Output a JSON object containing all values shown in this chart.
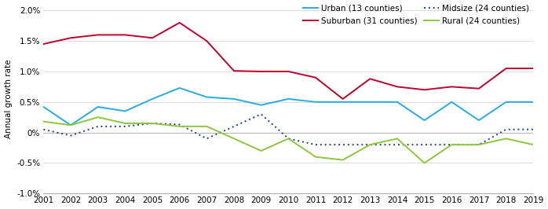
{
  "years": [
    2001,
    2002,
    2003,
    2004,
    2005,
    2006,
    2007,
    2008,
    2009,
    2010,
    2011,
    2012,
    2013,
    2014,
    2015,
    2016,
    2017,
    2018,
    2019
  ],
  "urban": [
    0.0042,
    0.0012,
    0.0042,
    0.0035,
    0.0055,
    0.0073,
    0.0058,
    0.0055,
    0.0045,
    0.0055,
    0.005,
    0.005,
    0.005,
    0.005,
    0.002,
    0.005,
    0.002,
    0.005,
    0.005
  ],
  "suburban": [
    0.0145,
    0.0155,
    0.016,
    0.016,
    0.0155,
    0.018,
    0.015,
    0.0101,
    0.01,
    0.01,
    0.009,
    0.0055,
    0.0088,
    0.0075,
    0.007,
    0.0075,
    0.0072,
    0.0105,
    0.0105
  ],
  "midsize": [
    0.0005,
    -0.0005,
    0.001,
    0.001,
    0.0015,
    0.0013,
    -0.001,
    0.001,
    0.003,
    -0.001,
    -0.002,
    -0.002,
    -0.002,
    -0.002,
    -0.002,
    -0.002,
    -0.002,
    0.0005,
    0.0005
  ],
  "rural": [
    0.0018,
    0.0012,
    0.0025,
    0.0015,
    0.0015,
    0.001,
    0.001,
    -0.001,
    -0.003,
    -0.001,
    -0.004,
    -0.0045,
    -0.002,
    -0.001,
    -0.005,
    -0.002,
    -0.002,
    -0.001,
    -0.002
  ],
  "urban_color": "#29ABE2",
  "suburban_color": "#C0002A",
  "midsize_color": "#1F3A93",
  "rural_color": "#8DC63F",
  "ylabel": "Annual growth rate",
  "ylim": [
    -0.01,
    0.021
  ],
  "yticks": [
    -0.01,
    -0.005,
    0.0,
    0.005,
    0.01,
    0.015,
    0.02
  ],
  "ytick_labels": [
    "-1.0%",
    "-0.5%",
    "0%",
    "0.5%",
    "1.0%",
    "1.5%",
    "2.0%"
  ],
  "legend_urban": "Urban (13 counties)",
  "legend_suburban": "Suburban (31 counties)",
  "legend_midsize": "Midsize (24 counties)",
  "legend_rural": "Rural (24 counties)"
}
